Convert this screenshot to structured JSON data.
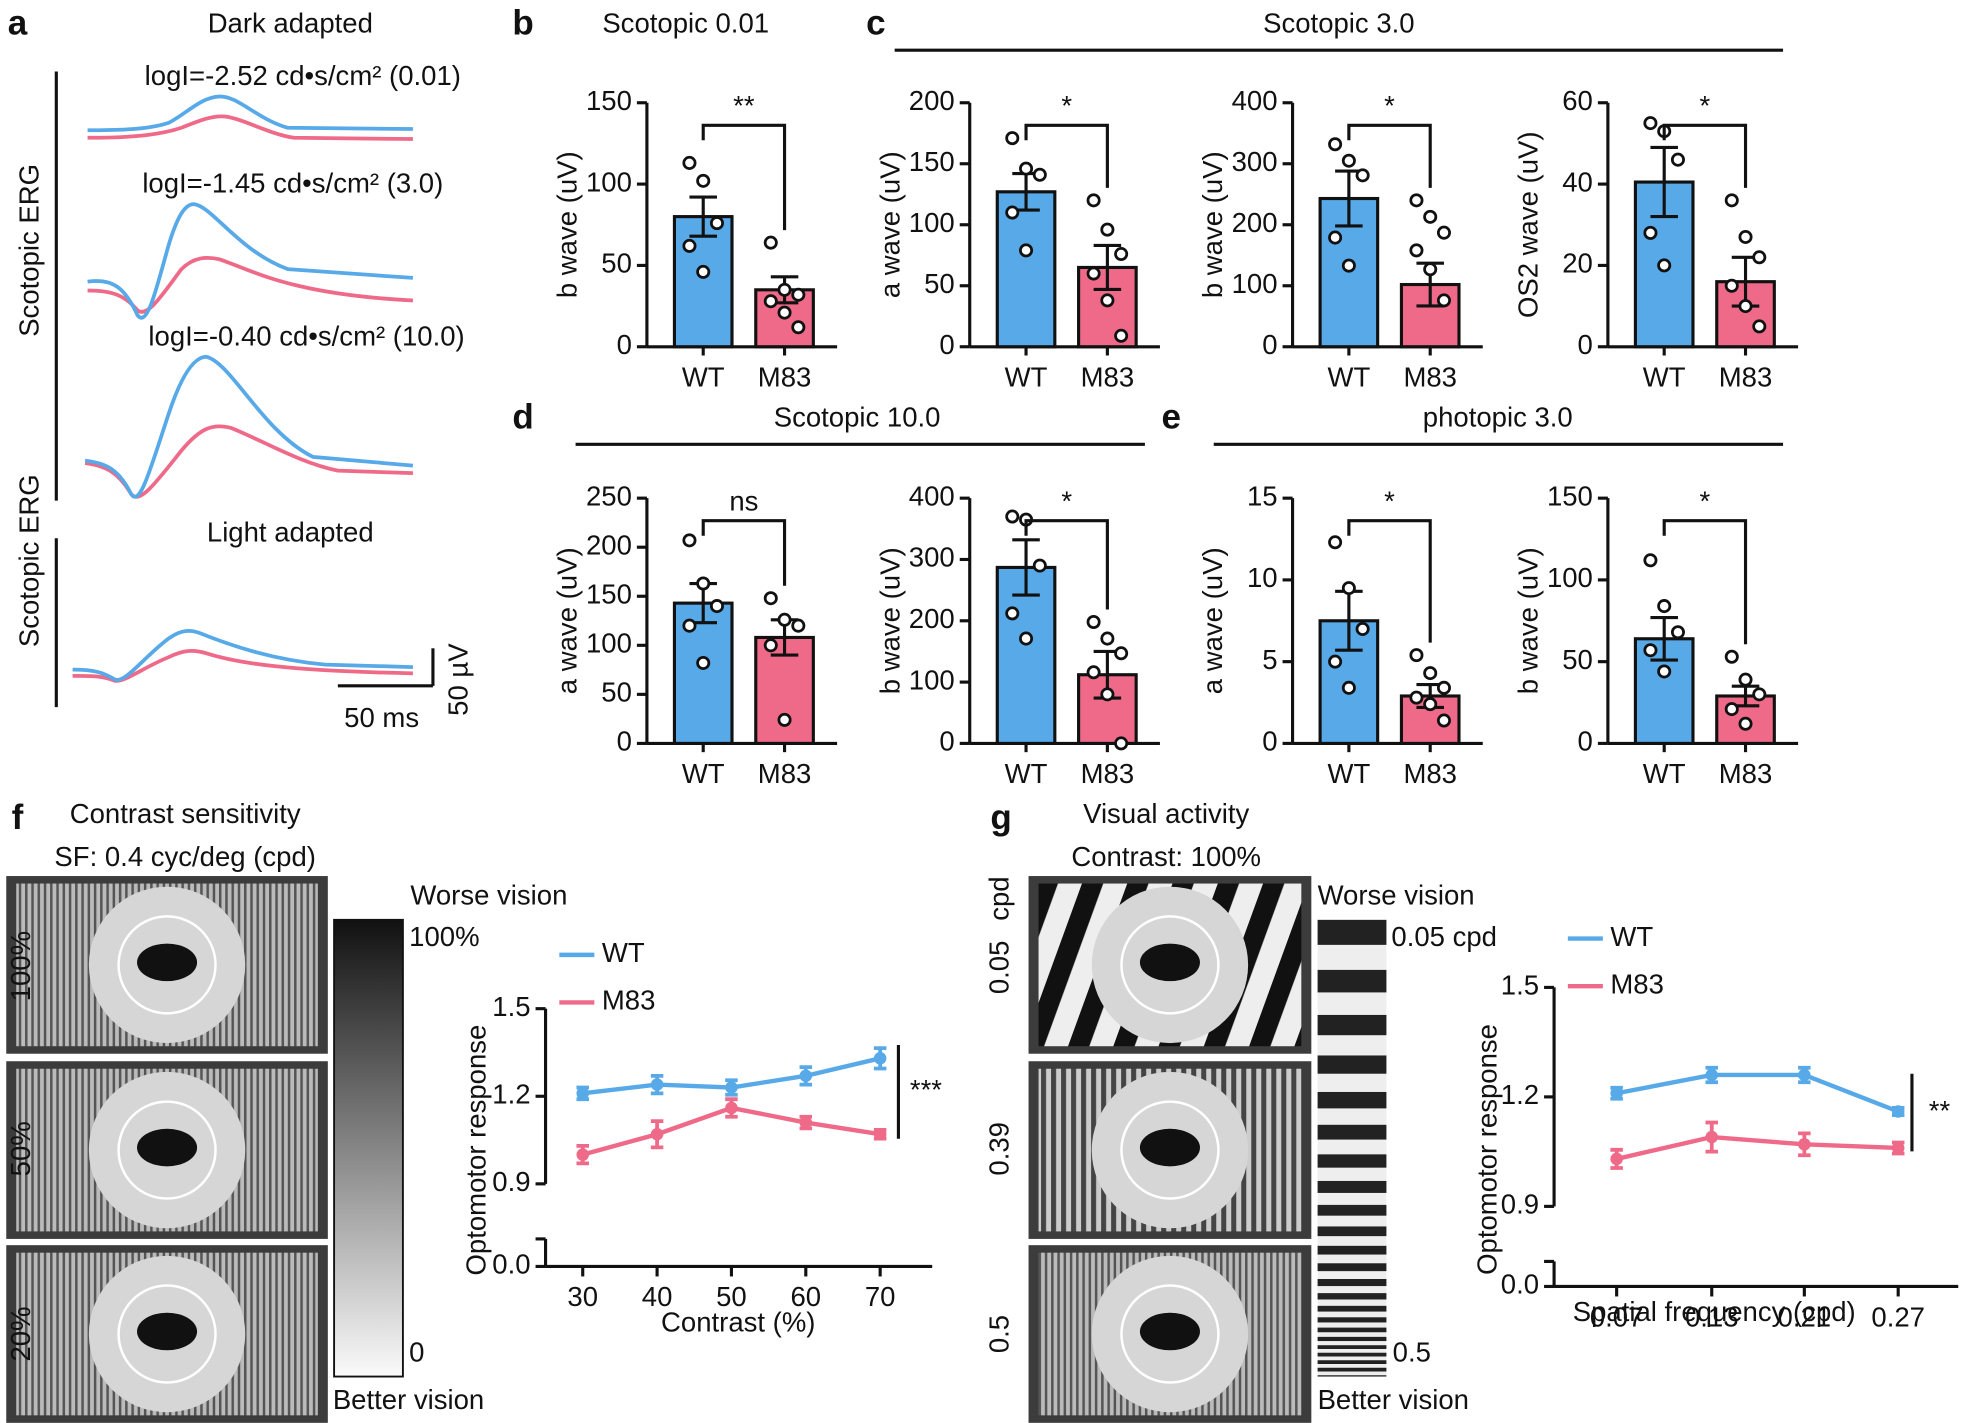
{
  "figure": {
    "letters": [
      "a",
      "b",
      "c",
      "d",
      "e",
      "f",
      "g"
    ],
    "group_titles": [
      "Scotopic 3.0",
      "Scotopic 10.0",
      "photopic 3.0"
    ]
  },
  "erg": {
    "dark_title": "Dark adapted",
    "intensities": [
      "logI=-2.52 cd•s/cm² (0.01)",
      "logI=-1.45 cd•s/cm² (3.0)",
      "logI=-0.40 cd•s/cm² (10.0)"
    ],
    "side_labels": [
      "Scotopic ERG",
      "Scotopic ERG"
    ],
    "light_title": "Light adapted",
    "time_scale": "50 ms",
    "voltage_scale": "50 µV"
  },
  "contrast": {
    "title": "Contrast sensitivity",
    "subtitle": "SF: 0.4 cyc/deg (cpd)",
    "rows": [
      "100%",
      "50%",
      "20%"
    ],
    "bar_top": "Worse vision",
    "bar_max": "100%",
    "bar_min": "0",
    "bar_bottom": "Better vision"
  },
  "acuity": {
    "title": "Visual activity",
    "subtitle": "Contrast: 100%",
    "unit": "cpd",
    "rows": [
      "0.05",
      "0.39",
      "0.5"
    ],
    "bar_top": "Worse vision",
    "bar_max": "0.05 cpd",
    "bar_min": "0.5",
    "bar_bottom": "Better vision"
  },
  "chart_data": [
    {
      "type": "bar",
      "title": "Scotopic 0.01",
      "ylabel": "b wave (uV)",
      "categories": [
        "WT",
        "M83"
      ],
      "colors": [
        "#58a9e8",
        "#ef6a88"
      ],
      "values": [
        80,
        35
      ],
      "errors": [
        12,
        8
      ],
      "points": [
        [
          113,
          102,
          76,
          62,
          46
        ],
        [
          64,
          35,
          32,
          28,
          21,
          12
        ]
      ],
      "ylim": [
        0,
        150
      ],
      "yticks": [
        0,
        50,
        100,
        150
      ],
      "significance": "**"
    },
    {
      "type": "bar",
      "ylabel": "a wave (uV)",
      "categories": [
        "WT",
        "M83"
      ],
      "colors": [
        "#58a9e8",
        "#ef6a88"
      ],
      "values": [
        127,
        65
      ],
      "errors": [
        15,
        18
      ],
      "points": [
        [
          171,
          146,
          141,
          110,
          79
        ],
        [
          120,
          96,
          76,
          60,
          38,
          9
        ]
      ],
      "ylim": [
        0,
        200
      ],
      "yticks": [
        0,
        50,
        100,
        150,
        200
      ],
      "significance": "*"
    },
    {
      "type": "bar",
      "ylabel": "b wave (uV)",
      "categories": [
        "WT",
        "M83"
      ],
      "colors": [
        "#58a9e8",
        "#ef6a88"
      ],
      "values": [
        243,
        102
      ],
      "errors": [
        45,
        35
      ],
      "points": [
        [
          332,
          305,
          281,
          179,
          133
        ],
        [
          240,
          213,
          187,
          158,
          127,
          76
        ]
      ],
      "ylim": [
        0,
        400
      ],
      "yticks": [
        0,
        100,
        200,
        300,
        400
      ],
      "significance": "*"
    },
    {
      "type": "bar",
      "ylabel": "OS2 wave (uV)",
      "categories": [
        "WT",
        "M83"
      ],
      "colors": [
        "#58a9e8",
        "#ef6a88"
      ],
      "values": [
        40.5,
        16
      ],
      "errors": [
        8.5,
        6
      ],
      "points": [
        [
          55,
          53,
          46,
          28,
          20
        ],
        [
          36,
          27,
          22,
          15,
          10,
          5
        ]
      ],
      "ylim": [
        0,
        60
      ],
      "yticks": [
        0,
        20,
        40,
        60
      ],
      "significance": "*"
    },
    {
      "type": "bar",
      "ylabel": "a wave (uV)",
      "categories": [
        "WT",
        "M83"
      ],
      "colors": [
        "#58a9e8",
        "#ef6a88"
      ],
      "values": [
        143,
        108
      ],
      "errors": [
        20,
        18
      ],
      "points": [
        [
          207,
          163,
          140,
          120,
          82
        ],
        [
          148,
          126,
          120,
          100,
          24
        ]
      ],
      "ylim": [
        0,
        250
      ],
      "yticks": [
        0,
        50,
        100,
        150,
        200,
        250
      ],
      "significance": "ns"
    },
    {
      "type": "bar",
      "ylabel": "b wave (uV)",
      "categories": [
        "WT",
        "M83"
      ],
      "colors": [
        "#58a9e8",
        "#ef6a88"
      ],
      "values": [
        287,
        112
      ],
      "errors": [
        45,
        38
      ],
      "points": [
        [
          370,
          365,
          290,
          212,
          171
        ],
        [
          198,
          171,
          147,
          116,
          80,
          0
        ]
      ],
      "ylim": [
        0,
        400
      ],
      "yticks": [
        0,
        100,
        200,
        300,
        400
      ],
      "significance": "*"
    },
    {
      "type": "bar",
      "ylabel": "a wave (uV)",
      "categories": [
        "WT",
        "M83"
      ],
      "colors": [
        "#58a9e8",
        "#ef6a88"
      ],
      "values": [
        7.5,
        2.9
      ],
      "errors": [
        1.8,
        0.7
      ],
      "points": [
        [
          12.3,
          9.5,
          7,
          5,
          3.4
        ],
        [
          5.4,
          4.3,
          3.4,
          2.8,
          2.4,
          1.4
        ]
      ],
      "ylim": [
        0,
        15
      ],
      "yticks": [
        0,
        5,
        10,
        15
      ],
      "significance": "*"
    },
    {
      "type": "bar",
      "ylabel": "b wave (uV)",
      "categories": [
        "WT",
        "M83"
      ],
      "colors": [
        "#58a9e8",
        "#ef6a88"
      ],
      "values": [
        64,
        29
      ],
      "errors": [
        13,
        6
      ],
      "points": [
        [
          112,
          84,
          68,
          57,
          44
        ],
        [
          53,
          39,
          30,
          21,
          12
        ]
      ],
      "ylim": [
        0,
        150
      ],
      "yticks": [
        0,
        50,
        100,
        150
      ],
      "significance": "*"
    },
    {
      "type": "line",
      "ylabel": "Optomotor response",
      "xlabel": "Contrast (%)",
      "x": [
        30,
        40,
        50,
        60,
        70
      ],
      "xlim": [
        25,
        77
      ],
      "xticks": [
        30,
        40,
        50,
        60,
        70
      ],
      "ylim": [
        0.9,
        1.5
      ],
      "yticks": [
        {
          "value": 0,
          "label": "0.0"
        },
        0.9,
        1.2,
        1.5
      ],
      "axis_break": true,
      "series": [
        {
          "name": "WT",
          "color": "#58a9e8",
          "values": [
            1.21,
            1.24,
            1.23,
            1.27,
            1.33
          ],
          "errors": [
            0.02,
            0.03,
            0.025,
            0.03,
            0.035
          ]
        },
        {
          "name": "M83",
          "color": "#ef6a88",
          "values": [
            1.0,
            1.07,
            1.16,
            1.11,
            1.07
          ],
          "errors": [
            0.03,
            0.045,
            0.03,
            0.02,
            0.015
          ]
        }
      ],
      "significance": "***"
    },
    {
      "type": "line",
      "ylabel": "Optomotor response",
      "xlabel": "Spatial frequency (cpd)",
      "categories": [
        "0.07",
        "0.13",
        "0.21",
        "0.27"
      ],
      "ylim": [
        0.9,
        1.5
      ],
      "yticks": [
        {
          "value": 0,
          "label": "0.0"
        },
        0.9,
        1.2,
        1.5
      ],
      "axis_break": true,
      "series": [
        {
          "name": "WT",
          "color": "#58a9e8",
          "values": [
            1.21,
            1.26,
            1.26,
            1.16
          ],
          "errors": [
            0.015,
            0.02,
            0.02,
            0.01
          ]
        },
        {
          "name": "M83",
          "color": "#ef6a88",
          "values": [
            1.03,
            1.09,
            1.07,
            1.06
          ],
          "errors": [
            0.025,
            0.04,
            0.03,
            0.015
          ]
        }
      ],
      "significance": "**"
    }
  ]
}
